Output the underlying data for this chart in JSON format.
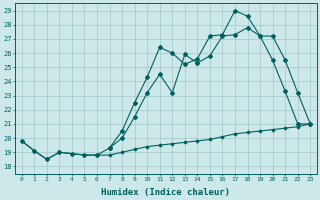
{
  "xlabel": "Humidex (Indice chaleur)",
  "bg_color": "#cce8e8",
  "grid_color": "#aacccc",
  "line_color": "#006060",
  "xlim": [
    -0.5,
    23.5
  ],
  "ylim": [
    17.5,
    29.5
  ],
  "yticks": [
    18,
    19,
    20,
    21,
    22,
    23,
    24,
    25,
    26,
    27,
    28,
    29
  ],
  "xticks": [
    0,
    1,
    2,
    3,
    4,
    5,
    6,
    7,
    8,
    9,
    10,
    11,
    12,
    13,
    14,
    15,
    16,
    17,
    18,
    19,
    20,
    21,
    22,
    23
  ],
  "line1_x": [
    0,
    1,
    2,
    3,
    4,
    5,
    6,
    7,
    8,
    9,
    10,
    11,
    12,
    13,
    14,
    15,
    16,
    17,
    18,
    19,
    20,
    21,
    22,
    23
  ],
  "line1_y": [
    19.8,
    19.1,
    18.5,
    19.0,
    18.9,
    18.8,
    18.8,
    18.8,
    19.0,
    19.2,
    19.4,
    19.5,
    19.6,
    19.7,
    19.8,
    19.9,
    20.1,
    20.3,
    20.4,
    20.5,
    20.6,
    20.7,
    20.8,
    21.0
  ],
  "line2_x": [
    0,
    1,
    2,
    3,
    4,
    5,
    6,
    7,
    8,
    9,
    10,
    11,
    12,
    13,
    14,
    15,
    16,
    17,
    18,
    19,
    20,
    21,
    22,
    23
  ],
  "line2_y": [
    19.8,
    19.1,
    18.5,
    19.0,
    18.9,
    18.8,
    18.8,
    19.3,
    20.5,
    22.5,
    24.3,
    26.4,
    26.0,
    25.2,
    25.6,
    27.2,
    27.3,
    29.0,
    28.6,
    27.2,
    27.2,
    25.5,
    23.2,
    21.0
  ],
  "line3_x": [
    7,
    8,
    9,
    10,
    11,
    12,
    13,
    14,
    15,
    16,
    17,
    18,
    19,
    20,
    21,
    22,
    23
  ],
  "line3_y": [
    19.3,
    20.0,
    21.5,
    23.2,
    24.5,
    23.2,
    25.9,
    25.3,
    25.8,
    27.2,
    27.3,
    27.8,
    27.2,
    25.5,
    23.3,
    21.0,
    21.0
  ]
}
